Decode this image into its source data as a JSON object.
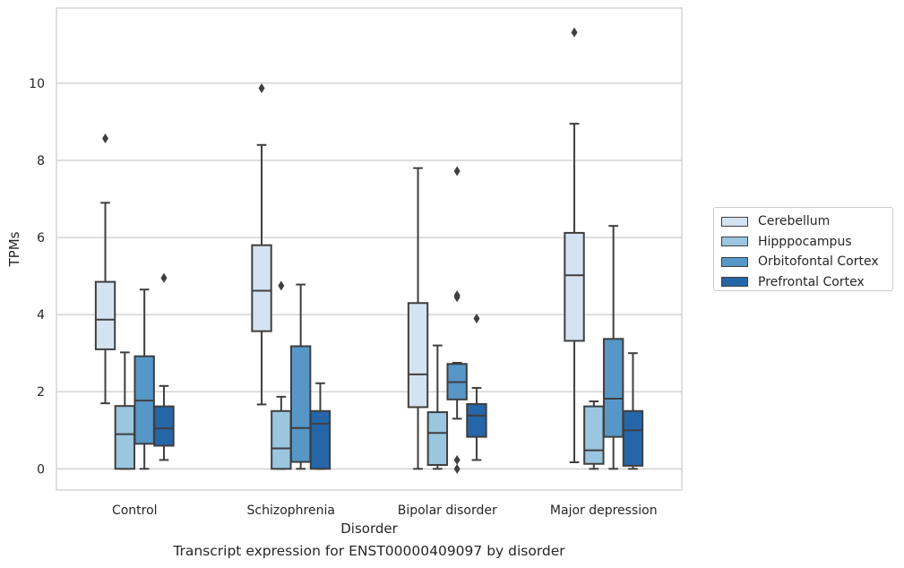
{
  "chart_data": {
    "type": "box",
    "title": "",
    "caption": "Transcript expression for ENST00000409097 by disorder",
    "xlabel": "Disorder",
    "ylabel": "TPMs",
    "ylim": [
      -0.55,
      11.95
    ],
    "yticks": [
      0,
      2,
      4,
      6,
      8,
      10
    ],
    "grid": "horizontal",
    "legend_position": "right",
    "categories": [
      "Control",
      "Schizophrenia",
      "Bipolar disorder",
      "Major depression"
    ],
    "series": [
      {
        "name": "Cerebellum",
        "color": "#d4e3f2",
        "boxes": [
          {
            "whislo": 1.7,
            "q1": 3.1,
            "med": 3.87,
            "q3": 4.85,
            "whishi": 6.9,
            "fliers": [
              8.57
            ]
          },
          {
            "whislo": 1.67,
            "q1": 3.57,
            "med": 4.62,
            "q3": 5.8,
            "whishi": 8.4,
            "fliers": [
              9.87
            ]
          },
          {
            "whislo": 0.0,
            "q1": 1.6,
            "med": 2.45,
            "q3": 4.3,
            "whishi": 7.8,
            "fliers": []
          },
          {
            "whislo": 0.17,
            "q1": 3.32,
            "med": 5.02,
            "q3": 6.12,
            "whishi": 8.95,
            "fliers": [
              11.32
            ]
          }
        ]
      },
      {
        "name": "Hipppocampus",
        "color": "#9ac6df",
        "boxes": [
          {
            "whislo": 0.0,
            "q1": 0.0,
            "med": 0.9,
            "q3": 1.63,
            "whishi": 3.02,
            "fliers": []
          },
          {
            "whislo": 0.0,
            "q1": 0.0,
            "med": 0.53,
            "q3": 1.5,
            "whishi": 1.87,
            "fliers": [
              4.75
            ]
          },
          {
            "whislo": 0.0,
            "q1": 0.1,
            "med": 0.93,
            "q3": 1.47,
            "whishi": 3.2,
            "fliers": []
          },
          {
            "whislo": 0.0,
            "q1": 0.13,
            "med": 0.48,
            "q3": 1.62,
            "whishi": 1.75,
            "fliers": []
          }
        ]
      },
      {
        "name": "Orbitofontal Cortex",
        "color": "#5697c7",
        "boxes": [
          {
            "whislo": 0.0,
            "q1": 0.65,
            "med": 1.77,
            "q3": 2.92,
            "whishi": 4.65,
            "fliers": []
          },
          {
            "whislo": 0.0,
            "q1": 0.18,
            "med": 1.06,
            "q3": 3.18,
            "whishi": 4.78,
            "fliers": []
          },
          {
            "whislo": 1.3,
            "q1": 1.8,
            "med": 2.25,
            "q3": 2.72,
            "whishi": 2.75,
            "fliers": [
              7.72,
              4.5,
              4.45,
              0.23,
              0.0
            ]
          },
          {
            "whislo": 0.0,
            "q1": 0.83,
            "med": 1.82,
            "q3": 3.37,
            "whishi": 6.3,
            "fliers": []
          }
        ]
      },
      {
        "name": "Prefrontal Cortex",
        "color": "#2566a8",
        "boxes": [
          {
            "whislo": 0.23,
            "q1": 0.6,
            "med": 1.05,
            "q3": 1.62,
            "whishi": 2.15,
            "fliers": [
              4.95
            ]
          },
          {
            "whislo": 0.0,
            "q1": 0.0,
            "med": 1.17,
            "q3": 1.5,
            "whishi": 2.22,
            "fliers": []
          },
          {
            "whislo": 0.23,
            "q1": 0.83,
            "med": 1.38,
            "q3": 1.68,
            "whishi": 2.1,
            "fliers": [
              3.9
            ]
          },
          {
            "whislo": 0.0,
            "q1": 0.08,
            "med": 1.0,
            "q3": 1.5,
            "whishi": 3.0,
            "fliers": []
          }
        ]
      }
    ]
  }
}
